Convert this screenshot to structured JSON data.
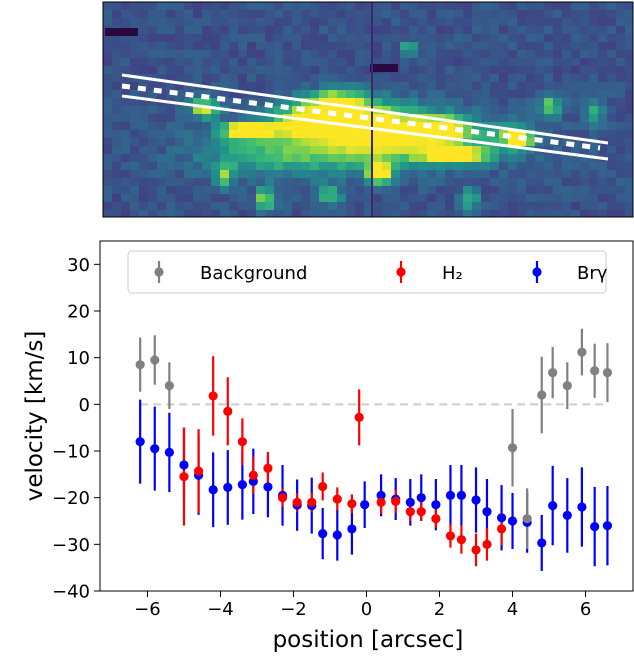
{
  "image_panel": {
    "colormap": "viridis",
    "slit": {
      "description_visible": false
    }
  },
  "chart_data": {
    "type": "scatter",
    "xlabel": "position [arcsec]",
    "ylabel": "velocity [km/s]",
    "xlim": [
      -7.3,
      7.3
    ],
    "ylim": [
      -40,
      35
    ],
    "xticks": [
      -6,
      -4,
      -2,
      0,
      2,
      4,
      6
    ],
    "yticks": [
      -40,
      -30,
      -20,
      -10,
      0,
      10,
      20,
      30
    ],
    "xtick_labels": [
      "−6",
      "−4",
      "−2",
      "0",
      "2",
      "4",
      "6"
    ],
    "ytick_labels": [
      "−40",
      "−30",
      "−20",
      "−10",
      "0",
      "10",
      "20",
      "30"
    ],
    "grid": false,
    "legend_position": "top",
    "reference_line": {
      "y": 0,
      "x_range": [
        -6.2,
        6.6
      ],
      "style": "dashed",
      "color": "#cccccc"
    },
    "series": [
      {
        "name": "Background",
        "color": "#808080",
        "points": [
          {
            "x": -6.2,
            "y": 8.5,
            "err": 5.8
          },
          {
            "x": -5.8,
            "y": 9.5,
            "err": 5.3
          },
          {
            "x": -5.4,
            "y": 4.0,
            "err": 5.0
          },
          {
            "x": 4.0,
            "y": -9.3,
            "err": 8.3
          },
          {
            "x": 4.4,
            "y": -24.5,
            "err": 6.5
          },
          {
            "x": 4.8,
            "y": 2.0,
            "err": 8.2
          },
          {
            "x": 5.1,
            "y": 6.8,
            "err": 5.5
          },
          {
            "x": 5.5,
            "y": 4.0,
            "err": 5.0
          },
          {
            "x": 5.9,
            "y": 11.2,
            "err": 5.0
          },
          {
            "x": 6.25,
            "y": 7.2,
            "err": 5.8
          },
          {
            "x": 6.6,
            "y": 6.8,
            "err": 6.3
          }
        ]
      },
      {
        "name": "H₂",
        "color": "#ff0000",
        "points": [
          {
            "x": -5.0,
            "y": -15.5,
            "err": 10.5
          },
          {
            "x": -4.6,
            "y": -14.3,
            "err": 9.0
          },
          {
            "x": -4.2,
            "y": 1.8,
            "err": 8.5
          },
          {
            "x": -3.8,
            "y": -1.5,
            "err": 7.3
          },
          {
            "x": -3.4,
            "y": -8.0,
            "err": 5.0
          },
          {
            "x": -3.1,
            "y": -15.2,
            "err": 4.0
          },
          {
            "x": -2.7,
            "y": -13.7,
            "err": 3.5
          },
          {
            "x": -2.3,
            "y": -20.0,
            "err": 2.0
          },
          {
            "x": -1.9,
            "y": -21.0,
            "err": 2.0
          },
          {
            "x": -1.5,
            "y": -21.0,
            "err": 2.0
          },
          {
            "x": -1.2,
            "y": -17.6,
            "err": 3.0
          },
          {
            "x": -0.8,
            "y": -20.3,
            "err": 2.5
          },
          {
            "x": -0.4,
            "y": -21.3,
            "err": 2.0
          },
          {
            "x": -0.2,
            "y": -2.8,
            "err": 6.0
          },
          {
            "x": 0.4,
            "y": -21.0,
            "err": 2.5
          },
          {
            "x": 0.8,
            "y": -20.8,
            "err": 2.5
          },
          {
            "x": 1.2,
            "y": -23.0,
            "err": 2.0
          },
          {
            "x": 1.5,
            "y": -23.0,
            "err": 2.0
          },
          {
            "x": 1.9,
            "y": -24.5,
            "err": 2.0
          },
          {
            "x": 2.3,
            "y": -28.2,
            "err": 2.5
          },
          {
            "x": 2.6,
            "y": -29.0,
            "err": 3.0
          },
          {
            "x": 3.0,
            "y": -31.2,
            "err": 3.5
          },
          {
            "x": 3.3,
            "y": -30.0,
            "err": 3.5
          },
          {
            "x": 3.7,
            "y": -26.7,
            "err": 3.5
          }
        ]
      },
      {
        "name": "Brγ",
        "color": "#0000ff",
        "points": [
          {
            "x": -6.2,
            "y": -8.0,
            "err": 9.0
          },
          {
            "x": -5.8,
            "y": -9.5,
            "err": 9.0
          },
          {
            "x": -5.4,
            "y": -10.3,
            "err": 8.5
          },
          {
            "x": -5.0,
            "y": -13.0,
            "err": 8.0
          },
          {
            "x": -4.6,
            "y": -15.2,
            "err": 8.5
          },
          {
            "x": -4.2,
            "y": -18.3,
            "err": 8.0
          },
          {
            "x": -3.8,
            "y": -17.8,
            "err": 8.0
          },
          {
            "x": -3.4,
            "y": -17.2,
            "err": 7.5
          },
          {
            "x": -3.1,
            "y": -16.5,
            "err": 7.0
          },
          {
            "x": -2.7,
            "y": -17.7,
            "err": 6.5
          },
          {
            "x": -2.3,
            "y": -19.5,
            "err": 6.5
          },
          {
            "x": -1.9,
            "y": -21.6,
            "err": 5.5
          },
          {
            "x": -1.5,
            "y": -21.7,
            "err": 6.0
          },
          {
            "x": -1.2,
            "y": -27.7,
            "err": 5.5
          },
          {
            "x": -0.8,
            "y": -28.0,
            "err": 5.5
          },
          {
            "x": -0.4,
            "y": -26.7,
            "err": 5.5
          },
          {
            "x": -0.05,
            "y": -21.5,
            "err": 5.0
          },
          {
            "x": 0.4,
            "y": -19.5,
            "err": 4.5
          },
          {
            "x": 0.8,
            "y": -20.3,
            "err": 4.5
          },
          {
            "x": 1.2,
            "y": -21.0,
            "err": 5.0
          },
          {
            "x": 1.5,
            "y": -20.0,
            "err": 5.0
          },
          {
            "x": 1.9,
            "y": -21.5,
            "err": 5.5
          },
          {
            "x": 2.3,
            "y": -19.5,
            "err": 6.5
          },
          {
            "x": 2.6,
            "y": -19.5,
            "err": 6.5
          },
          {
            "x": 3.0,
            "y": -20.5,
            "err": 7.0
          },
          {
            "x": 3.3,
            "y": -23.0,
            "err": 7.0
          },
          {
            "x": 3.7,
            "y": -24.3,
            "err": 7.0
          },
          {
            "x": 4.0,
            "y": -25.0,
            "err": 6.0
          },
          {
            "x": 4.4,
            "y": -25.3,
            "err": 6.5
          },
          {
            "x": 4.8,
            "y": -29.7,
            "err": 6.0
          },
          {
            "x": 5.1,
            "y": -21.7,
            "err": 8.5
          },
          {
            "x": 5.5,
            "y": -23.8,
            "err": 8.0
          },
          {
            "x": 5.9,
            "y": -22.0,
            "err": 8.5
          },
          {
            "x": 6.25,
            "y": -26.2,
            "err": 8.5
          },
          {
            "x": 6.6,
            "y": -26.0,
            "err": 8.5
          }
        ]
      }
    ]
  }
}
